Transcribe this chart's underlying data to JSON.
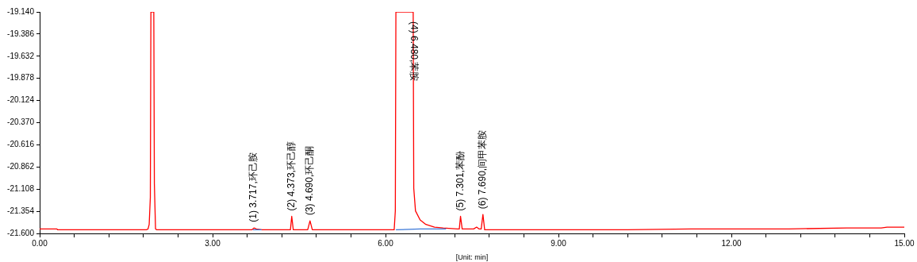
{
  "chart_data": {
    "type": "line",
    "xlabel": "[Unit: min]",
    "xlim": [
      0,
      15
    ],
    "xticks": [
      {
        "value": 0,
        "label": "0.00"
      },
      {
        "value": 0.6,
        "label": null
      },
      {
        "value": 1.2,
        "label": null
      },
      {
        "value": 1.8,
        "label": null
      },
      {
        "value": 2.4,
        "label": null
      },
      {
        "value": 3,
        "label": "3.00"
      },
      {
        "value": 3.6,
        "label": null
      },
      {
        "value": 4.2,
        "label": null
      },
      {
        "value": 4.8,
        "label": null
      },
      {
        "value": 5.4,
        "label": null
      },
      {
        "value": 6,
        "label": "6.00"
      },
      {
        "value": 6.6,
        "label": null
      },
      {
        "value": 7.2,
        "label": null
      },
      {
        "value": 7.8,
        "label": null
      },
      {
        "value": 8.4,
        "label": null
      },
      {
        "value": 9,
        "label": "9.00"
      },
      {
        "value": 9.6,
        "label": null
      },
      {
        "value": 10.2,
        "label": null
      },
      {
        "value": 10.8,
        "label": null
      },
      {
        "value": 11.4,
        "label": null
      },
      {
        "value": 12,
        "label": "12.00"
      },
      {
        "value": 12.6,
        "label": null
      },
      {
        "value": 13.2,
        "label": null
      },
      {
        "value": 13.8,
        "label": null
      },
      {
        "value": 14.4,
        "label": null
      },
      {
        "value": 15,
        "label": "15.00"
      }
    ],
    "ylim": [
      -21.6,
      -19.14
    ],
    "yticks": [
      {
        "value": -21.6,
        "label": "-21.600"
      },
      -21.354,
      -21.108,
      -20.862,
      -20.616,
      {
        "value": -20.37,
        "label": "-20.370"
      },
      -20.124,
      -19.878,
      -19.632,
      -19.386,
      {
        "value": -19.14,
        "label": "-19.140"
      }
    ],
    "grid": false,
    "legend": false,
    "marker": "none",
    "line_style": "solid",
    "series": [
      {
        "color": "#ff0000",
        "x": [
          0,
          0.3,
          0.31,
          1.85,
          1.88,
          1.9,
          1.92,
          1.93,
          1.98,
          1.99,
          2.01,
          2.03,
          3.68,
          3.717,
          3.76,
          3.85,
          4.32,
          4.35,
          4.373,
          4.4,
          4.65,
          4.69,
          4.73,
          6.15,
          6.17,
          6.18,
          6.48,
          6.49,
          6.52,
          6.6,
          6.7,
          6.85,
          7,
          7.25,
          7.28,
          7.301,
          7.33,
          7.53,
          7.58,
          7.62,
          7.66,
          7.69,
          7.72,
          7.85,
          7.87,
          8.5,
          9.8,
          10.2,
          11.3,
          12,
          13,
          14,
          14.6,
          14.7,
          15
        ],
        "values": [
          -21.55,
          -21.55,
          -21.56,
          -21.56,
          -21.55,
          -21.5,
          -21.2,
          -19.14,
          -19.14,
          -21.05,
          -21.55,
          -21.56,
          -21.56,
          -21.54,
          -21.55,
          -21.56,
          -21.56,
          -21.56,
          -21.41,
          -21.56,
          -21.56,
          -21.46,
          -21.56,
          -21.56,
          -21.35,
          -19.14,
          -19.14,
          -21.1,
          -21.35,
          -21.45,
          -21.5,
          -21.53,
          -21.54,
          -21.55,
          -21.55,
          -21.41,
          -21.55,
          -21.55,
          -21.53,
          -21.55,
          -21.55,
          -21.39,
          -21.56,
          -21.56,
          -21.56,
          -21.56,
          -21.56,
          -21.56,
          -21.55,
          -21.55,
          -21.55,
          -21.54,
          -21.54,
          -21.53,
          -21.53
        ]
      },
      {
        "color": "#3c78d8",
        "x": [
          3.7,
          3.85,
          3.86,
          6.18,
          6.6,
          7.05
        ],
        "values": [
          -21.56,
          -21.56,
          null,
          -21.56,
          -21.55,
          -21.55
        ]
      }
    ],
    "annotations": [
      {
        "text": "(1) 3.717,环己胺",
        "x": 3.717,
        "y": -21.535
      },
      {
        "text": "(2) 4.373,环己醇",
        "x": 4.373,
        "y": -21.41
      },
      {
        "text": "(3) 4.690,环己酮",
        "x": 4.69,
        "y": -21.46
      },
      {
        "text": "(4) 6.480,苯胺",
        "x": 6.48,
        "y": -19.14
      },
      {
        "text": "(5) 7.301,苯酚",
        "x": 7.301,
        "y": -21.41
      },
      {
        "text": "(6) 7.690,间甲苯胺",
        "x": 7.69,
        "y": -21.39
      }
    ]
  }
}
